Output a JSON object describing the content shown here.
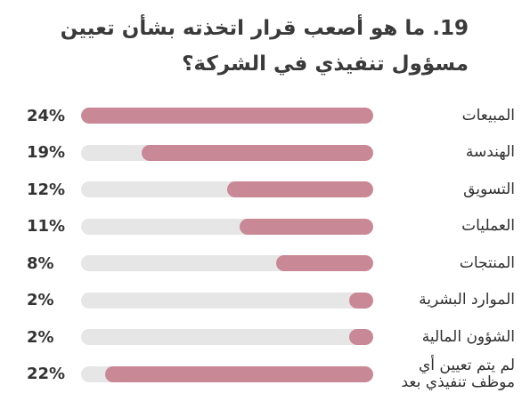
{
  "chart_data": {
    "type": "bar",
    "orientation": "horizontal",
    "title": "19. ما هو أصعب قرار اتخذته بشأن تعيين مسؤول تنفيذي في الشركة؟",
    "categories": [
      "المبيعات",
      "الهندسة",
      "التسويق",
      "العمليات",
      "المنتجات",
      "الموارد البشرية",
      "الشؤون المالية",
      "لم يتم تعيين أي موظف تنفيذي بعد"
    ],
    "values": [
      24,
      19,
      12,
      11,
      8,
      2,
      2,
      22
    ],
    "value_labels": [
      "24%",
      "19%",
      "12%",
      "11%",
      "8%",
      "2%",
      "2%",
      "22%"
    ],
    "xlim": [
      0,
      24
    ],
    "unit": "%",
    "colors": {
      "bar": "#c98895",
      "track": "#e6e6e6"
    }
  }
}
